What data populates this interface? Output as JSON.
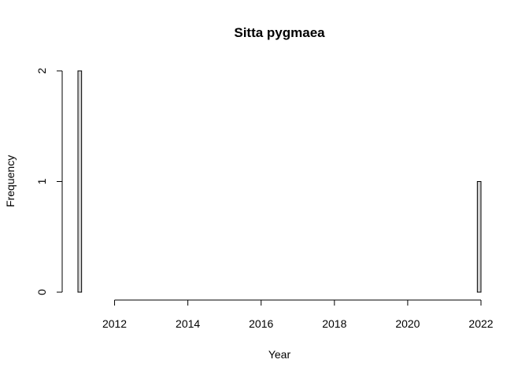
{
  "chart_data": {
    "type": "bar",
    "title": "Sitta pygmaea",
    "xlabel": "Year",
    "ylabel": "Frequency",
    "xlim": [
      2011,
      2022
    ],
    "ylim": [
      0,
      2
    ],
    "bin_width": 0.1,
    "xticks": [
      2012,
      2014,
      2016,
      2018,
      2020,
      2022
    ],
    "yticks": [
      0,
      1,
      2
    ],
    "bars": [
      {
        "x0": 2011.0,
        "x1": 2011.1,
        "value": 2
      },
      {
        "x0": 2021.9,
        "x1": 2022.0,
        "value": 1
      }
    ],
    "fill_color": "#d3d3d3",
    "grid": false,
    "legend": "none"
  }
}
